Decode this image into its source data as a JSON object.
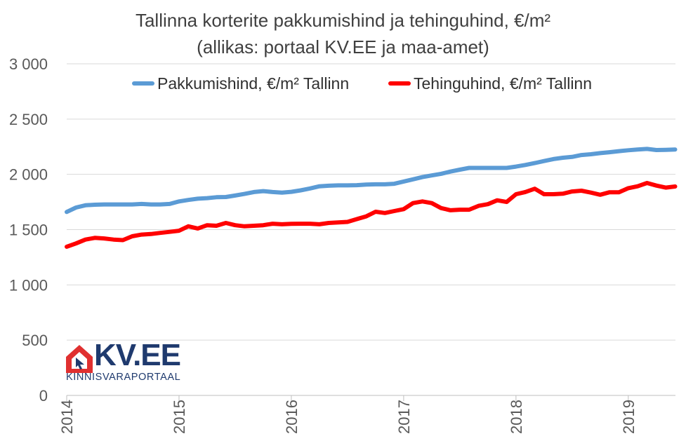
{
  "chart_data": {
    "type": "line",
    "title": "Tallinna korterite pakkumishind ja tehinguhind, €/m²",
    "subtitle": "(allikas: portaal KV.EE ja maa-amet)",
    "xlabel": "",
    "ylabel": "",
    "ylim": [
      0,
      3000
    ],
    "yticks": [
      0,
      500,
      1000,
      1500,
      2000,
      2500,
      3000
    ],
    "ytick_labels": [
      "0",
      "500",
      "1 000",
      "1 500",
      "2 000",
      "2 500",
      "3 000"
    ],
    "xlim": [
      2014.0,
      2019.42
    ],
    "xtick_labels": [
      "2014",
      "2015",
      "2016",
      "2017",
      "2018",
      "2019"
    ],
    "grid": true,
    "legend_position": "top",
    "series": [
      {
        "name": "Pakkumishind, €/m² Tallinn",
        "color": "#5b9bd5",
        "x": [
          2014.0,
          2014.083,
          2014.167,
          2014.25,
          2014.333,
          2014.417,
          2014.5,
          2014.583,
          2014.667,
          2014.75,
          2014.833,
          2014.917,
          2015.0,
          2015.083,
          2015.167,
          2015.25,
          2015.333,
          2015.417,
          2015.5,
          2015.583,
          2015.667,
          2015.75,
          2015.833,
          2015.917,
          2016.0,
          2016.083,
          2016.167,
          2016.25,
          2016.333,
          2016.417,
          2016.5,
          2016.583,
          2016.667,
          2016.75,
          2016.833,
          2016.917,
          2017.0,
          2017.083,
          2017.167,
          2017.25,
          2017.333,
          2017.417,
          2017.5,
          2017.583,
          2017.667,
          2017.75,
          2017.833,
          2017.917,
          2018.0,
          2018.083,
          2018.167,
          2018.25,
          2018.333,
          2018.417,
          2018.5,
          2018.583,
          2018.667,
          2018.75,
          2018.833,
          2018.917,
          2019.0,
          2019.083,
          2019.167,
          2019.25,
          2019.333,
          2019.417
        ],
        "values": [
          1660,
          1700,
          1720,
          1725,
          1728,
          1728,
          1728,
          1728,
          1732,
          1728,
          1728,
          1732,
          1755,
          1768,
          1780,
          1785,
          1793,
          1795,
          1808,
          1823,
          1840,
          1848,
          1840,
          1835,
          1842,
          1855,
          1872,
          1892,
          1897,
          1900,
          1900,
          1902,
          1908,
          1910,
          1910,
          1915,
          1935,
          1955,
          1975,
          1990,
          2005,
          2025,
          2042,
          2058,
          2058,
          2058,
          2058,
          2058,
          2070,
          2085,
          2102,
          2120,
          2138,
          2150,
          2158,
          2175,
          2182,
          2192,
          2200,
          2210,
          2218,
          2225,
          2230,
          2220,
          2222,
          2225
        ]
      },
      {
        "name": "Tehinguhind, €/m² Tallinn",
        "color": "#ff0000",
        "x": [
          2014.0,
          2014.083,
          2014.167,
          2014.25,
          2014.333,
          2014.417,
          2014.5,
          2014.583,
          2014.667,
          2014.75,
          2014.833,
          2014.917,
          2015.0,
          2015.083,
          2015.167,
          2015.25,
          2015.333,
          2015.417,
          2015.5,
          2015.583,
          2015.667,
          2015.75,
          2015.833,
          2015.917,
          2016.0,
          2016.083,
          2016.167,
          2016.25,
          2016.333,
          2016.417,
          2016.5,
          2016.583,
          2016.667,
          2016.75,
          2016.833,
          2016.917,
          2017.0,
          2017.083,
          2017.167,
          2017.25,
          2017.333,
          2017.417,
          2017.5,
          2017.583,
          2017.667,
          2017.75,
          2017.833,
          2017.917,
          2018.0,
          2018.083,
          2018.167,
          2018.25,
          2018.333,
          2018.417,
          2018.5,
          2018.583,
          2018.667,
          2018.75,
          2018.833,
          2018.917,
          2019.0,
          2019.083,
          2019.167,
          2019.25,
          2019.333,
          2019.417
        ],
        "values": [
          1345,
          1375,
          1410,
          1425,
          1420,
          1410,
          1405,
          1440,
          1455,
          1460,
          1470,
          1480,
          1490,
          1530,
          1510,
          1540,
          1535,
          1560,
          1540,
          1530,
          1535,
          1540,
          1553,
          1548,
          1552,
          1553,
          1553,
          1548,
          1560,
          1565,
          1570,
          1595,
          1620,
          1662,
          1650,
          1668,
          1685,
          1740,
          1755,
          1740,
          1695,
          1675,
          1680,
          1680,
          1715,
          1730,
          1765,
          1750,
          1820,
          1840,
          1870,
          1820,
          1820,
          1825,
          1845,
          1852,
          1835,
          1815,
          1838,
          1838,
          1875,
          1892,
          1922,
          1898,
          1880,
          1890
        ]
      }
    ]
  },
  "logo": {
    "name": "KV.EE",
    "tagline": "KINNISVARAPORTAAL",
    "brand_color": "#1f3a6e",
    "accent_color": "#e03030"
  }
}
